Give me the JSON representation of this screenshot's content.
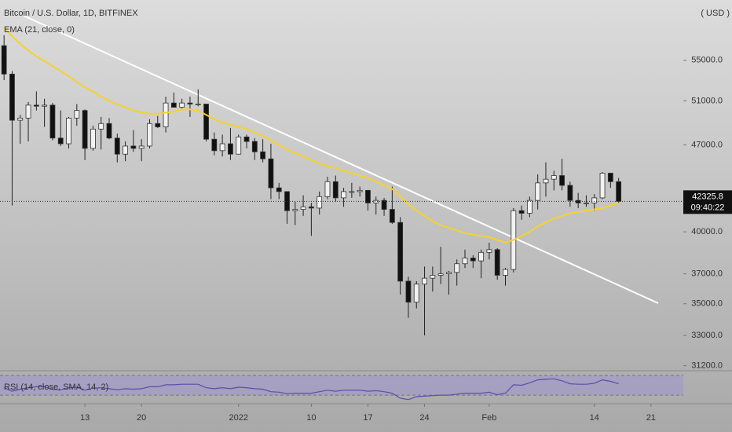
{
  "chart_data": {
    "type": "candlestick",
    "title": "Bitcoin / U.S. Dollar, 1D, BITFINEX",
    "currency": "( USD )",
    "log_scale": true,
    "up_color": "#f2f2f2",
    "down_color": "#111111",
    "ylim": [
      31000,
      61500
    ],
    "yticks": [
      {
        "value": 31200,
        "label": "31200.0"
      },
      {
        "value": 33000,
        "label": "33000.0"
      },
      {
        "value": 35000,
        "label": "35000.0"
      },
      {
        "value": 37000,
        "label": "37000.0"
      },
      {
        "value": 40000,
        "label": "40000.0"
      },
      {
        "value": 47000,
        "label": "47000.0"
      },
      {
        "value": 51000,
        "label": "51000.0"
      },
      {
        "value": 55000,
        "label": "55000.0"
      }
    ],
    "xlim": [
      -0.5,
      84
    ],
    "xticks": [
      {
        "value": 10,
        "label": "13"
      },
      {
        "value": 17,
        "label": "20"
      },
      {
        "value": 29,
        "label": "2022"
      },
      {
        "value": 38,
        "label": "10"
      },
      {
        "value": 45,
        "label": "17"
      },
      {
        "value": 52,
        "label": "24"
      },
      {
        "value": 60,
        "label": "Feb"
      },
      {
        "value": 73,
        "label": "14"
      },
      {
        "value": 80,
        "label": "21"
      }
    ],
    "open": [
      56500,
      53600,
      49200,
      49400,
      50600,
      50500,
      50600,
      47600,
      47100,
      49400,
      50100,
      46700,
      48400,
      48900,
      47600,
      46200,
      46900,
      46700,
      46900,
      48900,
      48600,
      50800,
      50400,
      50800,
      50700,
      50700,
      47500,
      46500,
      47100,
      46200,
      47700,
      47300,
      46400,
      45800,
      43400,
      43100,
      41600,
      41700,
      41900,
      41800,
      42700,
      43900,
      42600,
      43100,
      43100,
      43200,
      42200,
      42400,
      41700,
      40700,
      36500,
      35100,
      36300,
      36700,
      36900,
      37000,
      37100,
      37700,
      38100,
      37900,
      38500,
      38700,
      36900,
      37300,
      41600,
      41400,
      42400,
      43800,
      44100,
      44400,
      43600,
      42400,
      42200,
      42200,
      42600,
      44600,
      43900
    ],
    "high": [
      57600,
      53900,
      49700,
      50900,
      51900,
      51200,
      50800,
      50100,
      49500,
      50700,
      50200,
      48700,
      49500,
      49400,
      48000,
      47300,
      48300,
      47500,
      49300,
      49600,
      51400,
      51800,
      51200,
      51400,
      52100,
      50700,
      48100,
      47900,
      48500,
      47900,
      47900,
      47600,
      47500,
      47100,
      43800,
      43100,
      42300,
      42800,
      42200,
      43100,
      44300,
      44400,
      43400,
      43800,
      43500,
      43200,
      42700,
      42600,
      43500,
      41100,
      36800,
      36500,
      37500,
      37500,
      38900,
      37200,
      38000,
      38700,
      38300,
      38700,
      39200,
      38800,
      37400,
      41800,
      42000,
      42700,
      44500,
      45500,
      44800,
      45800,
      43900,
      43000,
      42800,
      42900,
      44700,
      44600,
      44200
    ],
    "low": [
      53000,
      42000,
      47100,
      47300,
      50100,
      48600,
      47400,
      46900,
      46700,
      48700,
      45700,
      46500,
      46600,
      47500,
      45500,
      45600,
      46400,
      45600,
      46700,
      48500,
      48100,
      50400,
      50200,
      49500,
      50500,
      47300,
      46100,
      46000,
      45700,
      46200,
      46700,
      45700,
      45500,
      42500,
      42500,
      40600,
      40500,
      41200,
      39700,
      41300,
      42500,
      42300,
      41900,
      42600,
      42700,
      41600,
      41300,
      41200,
      40600,
      35600,
      34100,
      34700,
      33000,
      35800,
      36300,
      35600,
      36200,
      37400,
      37400,
      36700,
      38000,
      36600,
      36200,
      37100,
      40900,
      41100,
      41700,
      42700,
      43200,
      43200,
      41900,
      41800,
      41900,
      41600,
      42500,
      43400,
      42200
    ],
    "close": [
      53600,
      49200,
      49400,
      50600,
      50500,
      50600,
      47600,
      47100,
      49400,
      50100,
      46700,
      48400,
      48900,
      47600,
      46200,
      46900,
      46700,
      46900,
      48900,
      48600,
      50800,
      50400,
      50800,
      50700,
      50700,
      47500,
      46500,
      47100,
      46200,
      47700,
      47300,
      46400,
      45800,
      43400,
      43100,
      41600,
      41700,
      41900,
      41800,
      42700,
      43900,
      42600,
      43100,
      43100,
      43200,
      42200,
      42400,
      41700,
      40700,
      36500,
      35100,
      36300,
      36700,
      36900,
      37000,
      37100,
      37700,
      38100,
      37900,
      38500,
      38700,
      36900,
      37300,
      41600,
      41400,
      42400,
      43800,
      44100,
      44400,
      43600,
      42400,
      42200,
      42200,
      42600,
      44600,
      43900,
      42325.8
    ],
    "ema": {
      "name": "EMA (21, close, 0)",
      "color": "#f5d22e",
      "values": [
        58400,
        57500,
        56700,
        56000,
        55400,
        54900,
        54400,
        53900,
        53400,
        52800,
        52300,
        51900,
        51400,
        51000,
        50700,
        50400,
        50100,
        49900,
        49800,
        49800,
        49900,
        50000,
        50200,
        50200,
        50100,
        49700,
        49300,
        49000,
        48800,
        48600,
        48400,
        48100,
        47800,
        47400,
        47000,
        46600,
        46300,
        46000,
        45700,
        45400,
        45200,
        45000,
        44800,
        44600,
        44400,
        44200,
        43900,
        43600,
        43300,
        42700,
        42100,
        41600,
        41200,
        40800,
        40500,
        40300,
        40100,
        39900,
        39800,
        39700,
        39600,
        39400,
        39200,
        39400,
        39700,
        40000,
        40400,
        40700,
        41000,
        41200,
        41400,
        41500,
        41600,
        41700,
        41800,
        42000,
        42200
      ]
    },
    "last_price": 42325.8,
    "countdown": "09:40:22",
    "rsi": {
      "name": "RSI (14, close, SMA, 14, 2)",
      "color": "#5b4fa8",
      "ylim": [
        0,
        100
      ],
      "levels": [
        70,
        30
      ],
      "values": [
        45,
        38,
        42,
        45,
        47,
        47,
        42,
        41,
        45,
        46,
        40,
        44,
        45,
        43,
        41,
        43,
        42,
        43,
        47,
        47,
        51,
        51,
        52,
        52,
        52,
        45,
        43,
        45,
        43,
        46,
        45,
        43,
        42,
        37,
        36,
        33,
        34,
        34,
        34,
        37,
        40,
        38,
        40,
        40,
        40,
        38,
        39,
        37,
        34,
        24,
        21,
        27,
        28,
        29,
        30,
        30,
        32,
        34,
        34,
        34,
        36,
        31,
        34,
        51,
        50,
        55,
        61,
        62,
        63,
        59,
        53,
        52,
        52,
        54,
        61,
        58,
        53
      ]
    }
  }
}
